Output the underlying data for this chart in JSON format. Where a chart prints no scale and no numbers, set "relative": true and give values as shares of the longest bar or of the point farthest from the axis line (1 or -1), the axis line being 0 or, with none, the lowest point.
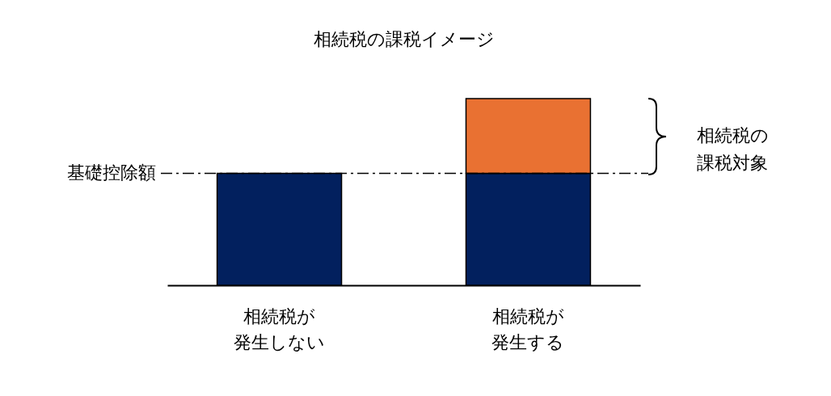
{
  "chart_data": {
    "type": "bar",
    "title": "相続税の課税イメージ",
    "relative": true,
    "stacked": true,
    "categories": [
      "相続税が発生しない",
      "相続税が発生する"
    ],
    "series": [
      {
        "color": "#02205e",
        "values": [
          0.6,
          0.6
        ]
      },
      {
        "color": "#e97132",
        "values": [
          null,
          0.4
        ]
      }
    ],
    "ref_lines": [
      {
        "axis": "y",
        "value": 0.6,
        "label": "基礎控除額",
        "line_style": "dashed",
        "color": "#000000"
      }
    ],
    "annotations": [
      "相続税の課税対象"
    ]
  }
}
